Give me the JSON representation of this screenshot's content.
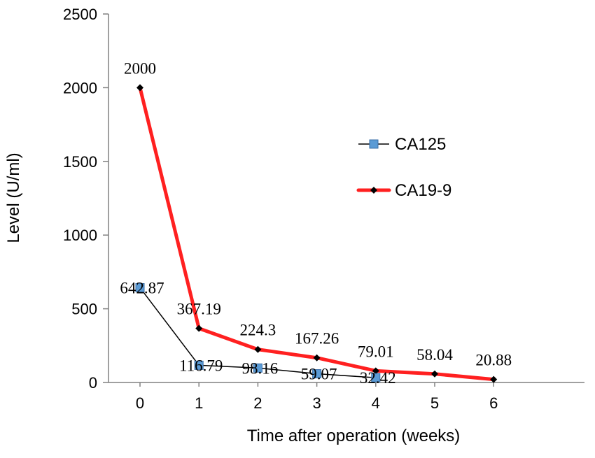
{
  "chart_data": {
    "type": "line",
    "xlabel": "Time after operation (weeks)",
    "ylabel": "Level (U/ml)",
    "ylim": [
      0,
      2500
    ],
    "yticks": [
      0,
      500,
      1000,
      1500,
      2000,
      2500
    ],
    "categories": [
      "0",
      "1",
      "2",
      "3",
      "4",
      "5",
      "6"
    ],
    "grid": false,
    "legend_position": "right",
    "series": [
      {
        "name": "CA125",
        "x": [
          0,
          1,
          2,
          3,
          4
        ],
        "values": [
          642.87,
          116.79,
          98.16,
          59.07,
          32.42
        ],
        "labels": [
          "642.87",
          "116.79",
          "98.16",
          "59.07",
          "32.42"
        ],
        "color": "#000000",
        "marker": "square",
        "marker_color": "#5b9bd5"
      },
      {
        "name": "CA19-9",
        "x": [
          0,
          1,
          2,
          3,
          4,
          5,
          6
        ],
        "values": [
          2000,
          367.19,
          224.3,
          167.26,
          79.01,
          58.04,
          20.88
        ],
        "labels": [
          "2000",
          "367.19",
          "224.3",
          "167.26",
          "79.01",
          "58.04",
          "20.88"
        ],
        "color": "#ff2020",
        "marker": "diamond",
        "marker_color": "#000000"
      }
    ]
  }
}
